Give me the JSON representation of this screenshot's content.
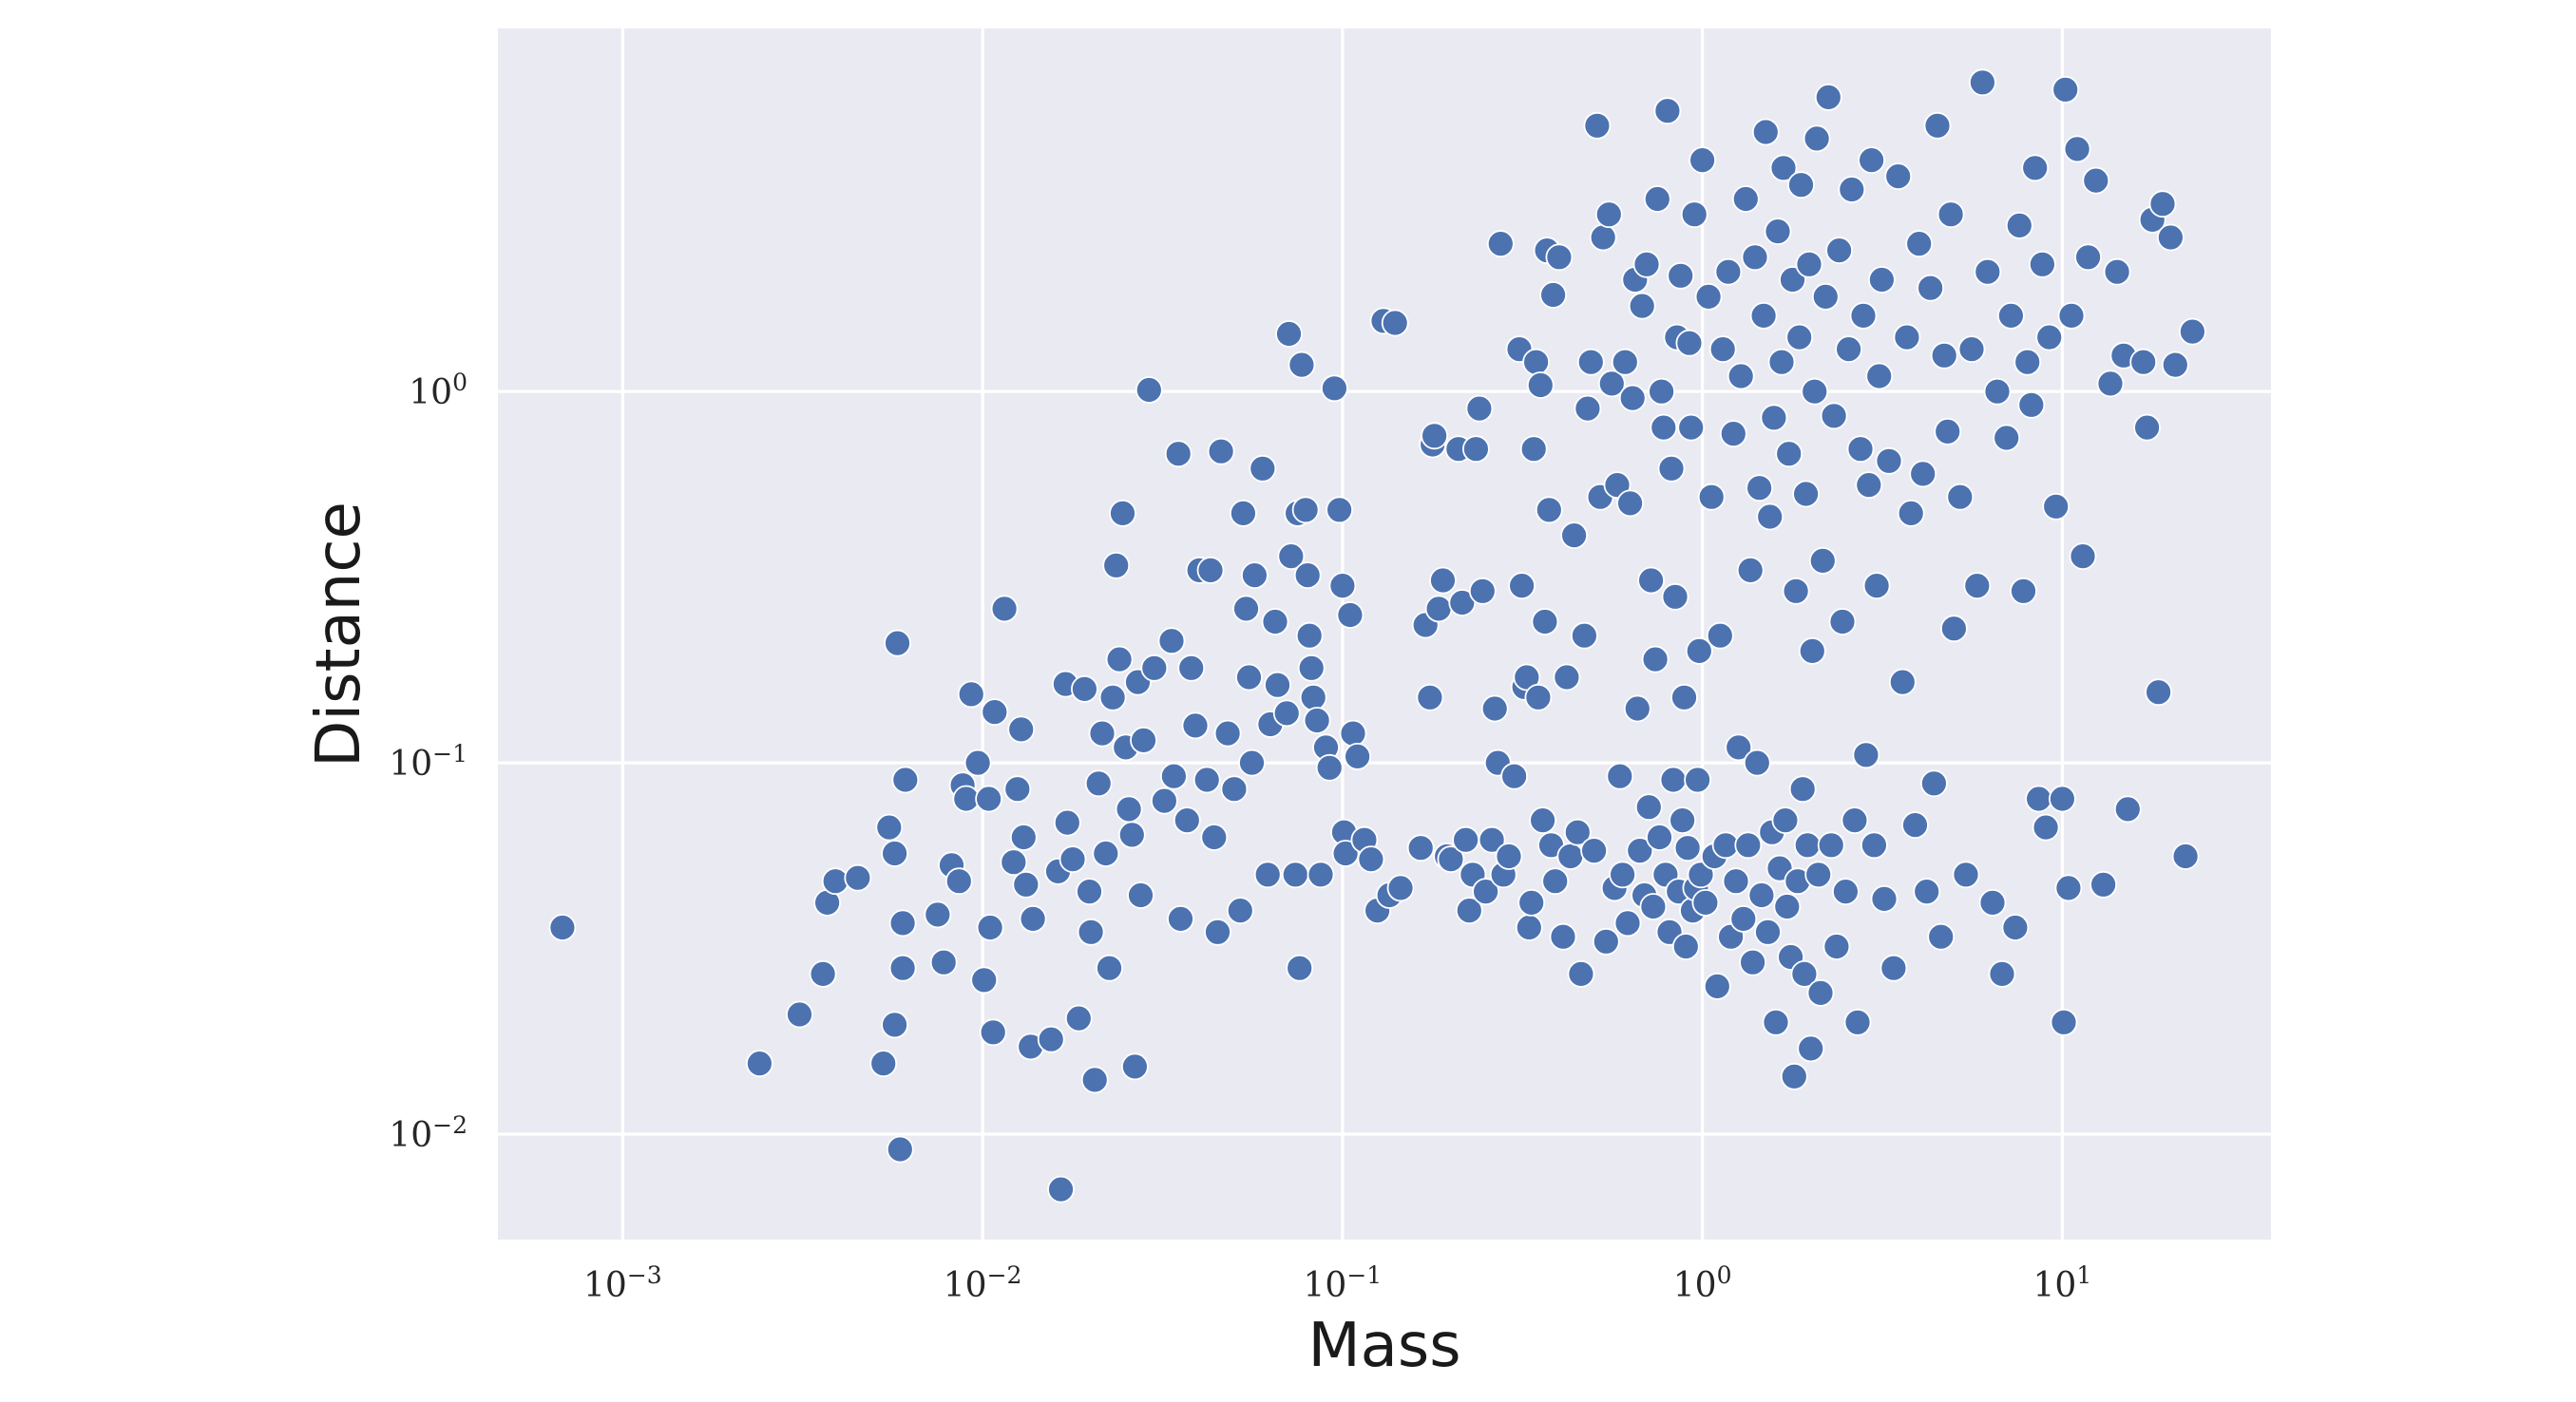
{
  "chart_data": {
    "type": "scatter",
    "xlabel": "Mass",
    "ylabel": "Distance",
    "xscale": "log",
    "yscale": "log",
    "xlim": [
      0.00045,
      38
    ],
    "ylim": [
      0.0052,
      9.5
    ],
    "grid": true,
    "marker_color": "#4c72b0",
    "background_color": "#eaeaf2",
    "x_ticks": [
      {
        "base": "10",
        "exp": "−3",
        "value": 0.001
      },
      {
        "base": "10",
        "exp": "−2",
        "value": 0.01
      },
      {
        "base": "10",
        "exp": "−1",
        "value": 0.1
      },
      {
        "base": "10",
        "exp": "0",
        "value": 1
      },
      {
        "base": "10",
        "exp": "1",
        "value": 10
      }
    ],
    "y_ticks": [
      {
        "base": "10",
        "exp": "0",
        "value": 1
      },
      {
        "base": "10",
        "exp": "−1",
        "value": 0.1
      },
      {
        "base": "10",
        "exp": "−2",
        "value": 0.01
      }
    ],
    "points": [
      [
        0.00068,
        0.036
      ],
      [
        0.0024,
        0.0155
      ],
      [
        0.0031,
        0.021
      ],
      [
        0.0037,
        0.042
      ],
      [
        0.0039,
        0.048
      ],
      [
        0.0036,
        0.027
      ],
      [
        0.0045,
        0.049
      ],
      [
        0.0053,
        0.0155
      ],
      [
        0.0055,
        0.067
      ],
      [
        0.0057,
        0.0197
      ],
      [
        0.0057,
        0.057
      ],
      [
        0.0058,
        0.21
      ],
      [
        0.0059,
        0.0091
      ],
      [
        0.006,
        0.028
      ],
      [
        0.006,
        0.037
      ],
      [
        0.0061,
        0.09
      ],
      [
        0.0075,
        0.039
      ],
      [
        0.0078,
        0.029
      ],
      [
        0.0082,
        0.053
      ],
      [
        0.0086,
        0.048
      ],
      [
        0.0088,
        0.087
      ],
      [
        0.009,
        0.08
      ],
      [
        0.0093,
        0.153
      ],
      [
        0.0097,
        0.1
      ],
      [
        0.0101,
        0.026
      ],
      [
        0.0104,
        0.08
      ],
      [
        0.0105,
        0.036
      ],
      [
        0.0107,
        0.0188
      ],
      [
        0.0108,
        0.137
      ],
      [
        0.0115,
        0.26
      ],
      [
        0.0122,
        0.054
      ],
      [
        0.0125,
        0.085
      ],
      [
        0.0128,
        0.123
      ],
      [
        0.013,
        0.063
      ],
      [
        0.0132,
        0.047
      ],
      [
        0.0136,
        0.0172
      ],
      [
        0.0138,
        0.038
      ],
      [
        0.0155,
        0.018
      ],
      [
        0.0162,
        0.051
      ],
      [
        0.0165,
        0.0071
      ],
      [
        0.017,
        0.163
      ],
      [
        0.0172,
        0.069
      ],
      [
        0.0178,
        0.055
      ],
      [
        0.0185,
        0.0205
      ],
      [
        0.0192,
        0.158
      ],
      [
        0.0198,
        0.045
      ],
      [
        0.02,
        0.035
      ],
      [
        0.0205,
        0.014
      ],
      [
        0.021,
        0.088
      ],
      [
        0.0215,
        0.12
      ],
      [
        0.022,
        0.057
      ],
      [
        0.0225,
        0.028
      ],
      [
        0.023,
        0.15
      ],
      [
        0.0235,
        0.34
      ],
      [
        0.024,
        0.19
      ],
      [
        0.0245,
        0.47
      ],
      [
        0.025,
        0.11
      ],
      [
        0.0255,
        0.075
      ],
      [
        0.026,
        0.064
      ],
      [
        0.0265,
        0.0152
      ],
      [
        0.027,
        0.165
      ],
      [
        0.0275,
        0.044
      ],
      [
        0.028,
        0.115
      ],
      [
        0.029,
        1.01
      ],
      [
        0.03,
        0.18
      ],
      [
        0.032,
        0.079
      ],
      [
        0.0335,
        0.213
      ],
      [
        0.034,
        0.092
      ],
      [
        0.035,
        0.68
      ],
      [
        0.0355,
        0.038
      ],
      [
        0.037,
        0.07
      ],
      [
        0.038,
        0.18
      ],
      [
        0.039,
        0.126
      ],
      [
        0.04,
        0.33
      ],
      [
        0.042,
        0.09
      ],
      [
        0.043,
        0.33
      ],
      [
        0.044,
        0.063
      ],
      [
        0.045,
        0.035
      ],
      [
        0.046,
        0.69
      ],
      [
        0.048,
        0.12
      ],
      [
        0.05,
        0.085
      ],
      [
        0.052,
        0.04
      ],
      [
        0.053,
        0.47
      ],
      [
        0.054,
        0.26
      ],
      [
        0.055,
        0.17
      ],
      [
        0.056,
        0.1
      ],
      [
        0.057,
        0.32
      ],
      [
        0.06,
        0.62
      ],
      [
        0.062,
        0.05
      ],
      [
        0.063,
        0.127
      ],
      [
        0.065,
        0.24
      ],
      [
        0.066,
        0.162
      ],
      [
        0.07,
        0.136
      ],
      [
        0.071,
        1.43
      ],
      [
        0.072,
        0.36
      ],
      [
        0.074,
        0.05
      ],
      [
        0.075,
        0.47
      ],
      [
        0.076,
        0.028
      ],
      [
        0.077,
        1.18
      ],
      [
        0.079,
        0.48
      ],
      [
        0.08,
        0.32
      ],
      [
        0.081,
        0.22
      ],
      [
        0.082,
        0.18
      ],
      [
        0.083,
        0.15
      ],
      [
        0.085,
        0.13
      ],
      [
        0.087,
        0.05
      ],
      [
        0.09,
        0.11
      ],
      [
        0.092,
        0.097
      ],
      [
        0.095,
        1.02
      ],
      [
        0.098,
        0.48
      ],
      [
        0.1,
        0.3
      ],
      [
        0.101,
        0.065
      ],
      [
        0.102,
        0.057
      ],
      [
        0.105,
        0.25
      ],
      [
        0.107,
        0.12
      ],
      [
        0.11,
        0.104
      ],
      [
        0.115,
        0.062
      ],
      [
        0.12,
        0.055
      ],
      [
        0.125,
        0.04
      ],
      [
        0.13,
        1.55
      ],
      [
        0.135,
        0.044
      ],
      [
        0.14,
        1.53
      ],
      [
        0.145,
        0.046
      ],
      [
        0.165,
        0.059
      ],
      [
        0.17,
        0.235
      ],
      [
        0.175,
        0.15
      ],
      [
        0.178,
        0.72
      ],
      [
        0.18,
        0.76
      ],
      [
        0.185,
        0.26
      ],
      [
        0.19,
        0.31
      ],
      [
        0.195,
        0.056
      ],
      [
        0.2,
        0.055
      ],
      [
        0.21,
        0.7
      ],
      [
        0.215,
        0.27
      ],
      [
        0.22,
        0.062
      ],
      [
        0.225,
        0.04
      ],
      [
        0.23,
        0.05
      ],
      [
        0.235,
        0.7
      ],
      [
        0.24,
        0.9
      ],
      [
        0.245,
        0.29
      ],
      [
        0.25,
        0.045
      ],
      [
        0.26,
        0.062
      ],
      [
        0.265,
        0.14
      ],
      [
        0.27,
        0.1
      ],
      [
        0.275,
        2.5
      ],
      [
        0.28,
        0.05
      ],
      [
        0.29,
        0.056
      ],
      [
        0.3,
        0.092
      ],
      [
        0.31,
        1.3
      ],
      [
        0.315,
        0.3
      ],
      [
        0.32,
        0.16
      ],
      [
        0.325,
        0.17
      ],
      [
        0.33,
        0.036
      ],
      [
        0.335,
        0.042
      ],
      [
        0.34,
        0.7
      ],
      [
        0.345,
        1.2
      ],
      [
        0.35,
        0.15
      ],
      [
        0.355,
        1.04
      ],
      [
        0.36,
        0.07
      ],
      [
        0.365,
        0.24
      ],
      [
        0.37,
        2.4
      ],
      [
        0.375,
        0.48
      ],
      [
        0.38,
        0.06
      ],
      [
        0.385,
        1.82
      ],
      [
        0.39,
        0.048
      ],
      [
        0.4,
        2.3
      ],
      [
        0.41,
        0.034
      ],
      [
        0.42,
        0.17
      ],
      [
        0.43,
        0.056
      ],
      [
        0.44,
        0.41
      ],
      [
        0.45,
        0.065
      ],
      [
        0.46,
        0.027
      ],
      [
        0.47,
        0.22
      ],
      [
        0.48,
        0.9
      ],
      [
        0.49,
        1.2
      ],
      [
        0.5,
        0.058
      ],
      [
        0.51,
        5.2
      ],
      [
        0.52,
        0.52
      ],
      [
        0.53,
        2.6
      ],
      [
        0.54,
        0.033
      ],
      [
        0.55,
        3.0
      ],
      [
        0.56,
        1.05
      ],
      [
        0.57,
        0.046
      ],
      [
        0.58,
        0.56
      ],
      [
        0.59,
        0.092
      ],
      [
        0.6,
        0.05
      ],
      [
        0.61,
        1.2
      ],
      [
        0.62,
        0.037
      ],
      [
        0.63,
        0.5
      ],
      [
        0.64,
        0.96
      ],
      [
        0.65,
        2.0
      ],
      [
        0.66,
        0.14
      ],
      [
        0.67,
        0.058
      ],
      [
        0.68,
        1.7
      ],
      [
        0.69,
        0.044
      ],
      [
        0.7,
        2.2
      ],
      [
        0.71,
        0.076
      ],
      [
        0.72,
        0.31
      ],
      [
        0.73,
        0.041
      ],
      [
        0.74,
        0.19
      ],
      [
        0.75,
        3.3
      ],
      [
        0.76,
        0.063
      ],
      [
        0.77,
        1.0
      ],
      [
        0.78,
        0.8
      ],
      [
        0.79,
        0.05
      ],
      [
        0.8,
        5.7
      ],
      [
        0.81,
        0.035
      ],
      [
        0.82,
        0.62
      ],
      [
        0.83,
        0.09
      ],
      [
        0.84,
        0.28
      ],
      [
        0.85,
        1.4
      ],
      [
        0.86,
        0.045
      ],
      [
        0.87,
        2.05
      ],
      [
        0.88,
        0.07
      ],
      [
        0.89,
        0.15
      ],
      [
        0.9,
        0.032
      ],
      [
        0.91,
        0.059
      ],
      [
        0.92,
        1.35
      ],
      [
        0.93,
        0.8
      ],
      [
        0.94,
        0.04
      ],
      [
        0.95,
        3.0
      ],
      [
        0.96,
        0.046
      ],
      [
        0.97,
        0.09
      ],
      [
        0.98,
        0.2
      ],
      [
        0.99,
        0.05
      ],
      [
        1.0,
        4.2
      ],
      [
        1.02,
        0.042
      ],
      [
        1.04,
        1.8
      ],
      [
        1.06,
        0.52
      ],
      [
        1.08,
        0.056
      ],
      [
        1.1,
        0.025
      ],
      [
        1.12,
        0.22
      ],
      [
        1.14,
        1.3
      ],
      [
        1.16,
        0.06
      ],
      [
        1.18,
        2.1
      ],
      [
        1.2,
        0.034
      ],
      [
        1.22,
        0.77
      ],
      [
        1.24,
        0.048
      ],
      [
        1.26,
        0.11
      ],
      [
        1.28,
        1.1
      ],
      [
        1.3,
        0.038
      ],
      [
        1.32,
        3.3
      ],
      [
        1.34,
        0.06
      ],
      [
        1.36,
        0.33
      ],
      [
        1.38,
        0.029
      ],
      [
        1.4,
        2.3
      ],
      [
        1.42,
        0.1
      ],
      [
        1.44,
        0.55
      ],
      [
        1.46,
        0.044
      ],
      [
        1.48,
        1.6
      ],
      [
        1.5,
        5.0
      ],
      [
        1.52,
        0.035
      ],
      [
        1.54,
        0.46
      ],
      [
        1.56,
        0.065
      ],
      [
        1.58,
        0.85
      ],
      [
        1.6,
        0.02
      ],
      [
        1.62,
        2.7
      ],
      [
        1.64,
        0.052
      ],
      [
        1.66,
        1.2
      ],
      [
        1.68,
        4.0
      ],
      [
        1.7,
        0.07
      ],
      [
        1.72,
        0.041
      ],
      [
        1.74,
        0.68
      ],
      [
        1.76,
        0.03
      ],
      [
        1.78,
        2.0
      ],
      [
        1.8,
        0.0143
      ],
      [
        1.82,
        0.29
      ],
      [
        1.84,
        0.048
      ],
      [
        1.86,
        1.4
      ],
      [
        1.88,
        3.6
      ],
      [
        1.9,
        0.085
      ],
      [
        1.92,
        0.027
      ],
      [
        1.94,
        0.53
      ],
      [
        1.96,
        0.06
      ],
      [
        1.98,
        2.2
      ],
      [
        2.0,
        0.017
      ],
      [
        2.02,
        0.2
      ],
      [
        2.05,
        1.0
      ],
      [
        2.08,
        4.8
      ],
      [
        2.1,
        0.05
      ],
      [
        2.13,
        0.024
      ],
      [
        2.16,
        0.35
      ],
      [
        2.2,
        1.8
      ],
      [
        2.24,
        6.2
      ],
      [
        2.28,
        0.06
      ],
      [
        2.32,
        0.86
      ],
      [
        2.36,
        0.032
      ],
      [
        2.4,
        2.4
      ],
      [
        2.45,
        0.24
      ],
      [
        2.5,
        0.045
      ],
      [
        2.55,
        1.3
      ],
      [
        2.6,
        3.5
      ],
      [
        2.65,
        0.07
      ],
      [
        2.7,
        0.02
      ],
      [
        2.75,
        0.7
      ],
      [
        2.8,
        1.6
      ],
      [
        2.85,
        0.105
      ],
      [
        2.9,
        0.56
      ],
      [
        2.95,
        4.2
      ],
      [
        3.0,
        0.06
      ],
      [
        3.05,
        0.3
      ],
      [
        3.1,
        1.1
      ],
      [
        3.15,
        2.0
      ],
      [
        3.2,
        0.043
      ],
      [
        3.3,
        0.65
      ],
      [
        3.4,
        0.028
      ],
      [
        3.5,
        3.8
      ],
      [
        3.6,
        0.165
      ],
      [
        3.7,
        1.4
      ],
      [
        3.8,
        0.47
      ],
      [
        3.9,
        0.068
      ],
      [
        4.0,
        2.5
      ],
      [
        4.1,
        0.6
      ],
      [
        4.2,
        0.045
      ],
      [
        4.3,
        1.9
      ],
      [
        4.4,
        0.088
      ],
      [
        4.5,
        5.2
      ],
      [
        4.6,
        0.034
      ],
      [
        4.7,
        1.25
      ],
      [
        4.8,
        0.78
      ],
      [
        4.9,
        3.0
      ],
      [
        5.0,
        0.23
      ],
      [
        5.2,
        0.52
      ],
      [
        5.4,
        0.05
      ],
      [
        5.6,
        1.3
      ],
      [
        5.8,
        0.3
      ],
      [
        6.0,
        6.8
      ],
      [
        6.2,
        2.1
      ],
      [
        6.4,
        0.042
      ],
      [
        6.6,
        1.0
      ],
      [
        6.8,
        0.027
      ],
      [
        7.0,
        0.75
      ],
      [
        7.2,
        1.6
      ],
      [
        7.4,
        0.036
      ],
      [
        7.6,
        2.8
      ],
      [
        7.8,
        0.29
      ],
      [
        8.0,
        1.2
      ],
      [
        8.2,
        0.92
      ],
      [
        8.4,
        4.0
      ],
      [
        8.6,
        0.08
      ],
      [
        8.8,
        2.2
      ],
      [
        9.0,
        0.067
      ],
      [
        9.2,
        1.4
      ],
      [
        9.6,
        0.49
      ],
      [
        10.0,
        0.08
      ],
      [
        10.1,
        0.02
      ],
      [
        10.2,
        6.5
      ],
      [
        10.4,
        0.046
      ],
      [
        10.6,
        1.6
      ],
      [
        11.0,
        4.5
      ],
      [
        11.4,
        0.36
      ],
      [
        11.8,
        2.3
      ],
      [
        12.4,
        3.7
      ],
      [
        13.0,
        0.047
      ],
      [
        13.6,
        1.05
      ],
      [
        14.2,
        2.1
      ],
      [
        14.8,
        1.25
      ],
      [
        15.2,
        0.075
      ],
      [
        16.8,
        1.2
      ],
      [
        17.2,
        0.8
      ],
      [
        17.8,
        2.9
      ],
      [
        18.5,
        0.155
      ],
      [
        19.0,
        3.2
      ],
      [
        20.0,
        2.6
      ],
      [
        20.6,
        1.18
      ],
      [
        22.0,
        0.056
      ],
      [
        23.0,
        1.45
      ]
    ]
  }
}
